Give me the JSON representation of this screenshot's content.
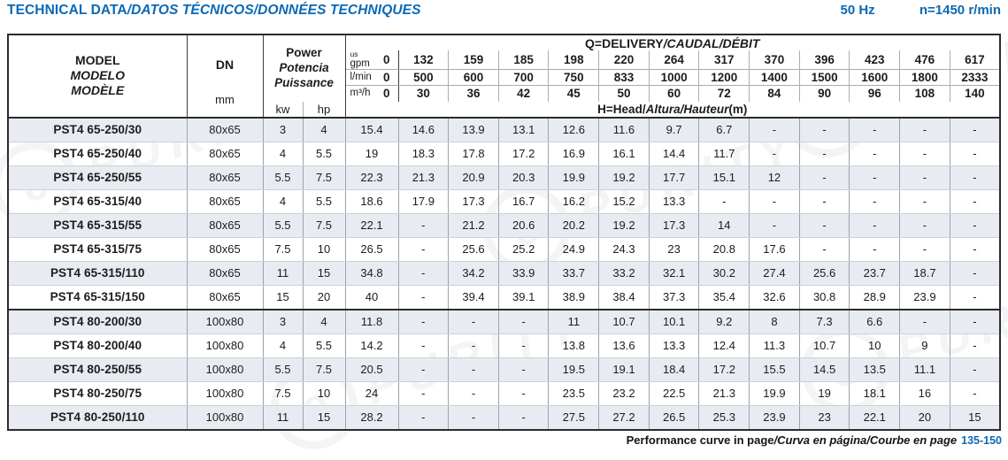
{
  "page": {
    "title": {
      "main": "TECHNICAL DATA",
      "italic": "/DATOS TÉCNICOS/DONNÉES TECHNIQUES"
    },
    "frequency": "50 Hz",
    "speed": "n=1450 r/min",
    "footer": {
      "main": "Performance curve in page",
      "italic": "/Curva en página/Courbe en page",
      "pages": "135-150"
    },
    "watermark_text": "PURITY",
    "colors": {
      "accent": "#0a69b5",
      "row_shade": "#e8ecf2",
      "border_dark": "#2d2a2b",
      "border_light": "#a6adb5"
    }
  },
  "table": {
    "header": {
      "model_lines": [
        "MODEL",
        "MODELO",
        "MODÈLE"
      ],
      "dn_label": "DN",
      "dn_unit": "mm",
      "power_lines": [
        "Power",
        "Potencia",
        "Puissance"
      ],
      "kw_label": "kw",
      "hp_label": "hp",
      "delivery_title": {
        "main": "Q=DELIVERY",
        "italic": "/CAUDAL/DÉBIT"
      },
      "head_title": {
        "main": "H=Head/",
        "italic": "Altura/Hauteur",
        "unit": "(m)"
      },
      "units": {
        "gpm_sup": "us",
        "gpm": "gpm",
        "lmin": "l/min",
        "m3h": "m³/h"
      },
      "gpm_values": [
        "0",
        "132",
        "159",
        "185",
        "198",
        "220",
        "264",
        "317",
        "370",
        "396",
        "423",
        "476",
        "617"
      ],
      "lmin_values": [
        "0",
        "500",
        "600",
        "700",
        "750",
        "833",
        "1000",
        "1200",
        "1400",
        "1500",
        "1600",
        "1800",
        "2333"
      ],
      "m3h_values": [
        "0",
        "30",
        "36",
        "42",
        "45",
        "50",
        "60",
        "72",
        "84",
        "90",
        "96",
        "108",
        "140"
      ]
    },
    "rows": [
      {
        "model": "PST4 65-250/30",
        "dn": "80x65",
        "kw": "3",
        "hp": "4",
        "shaded": true,
        "group_start": false,
        "head": [
          "15.4",
          "14.6",
          "13.9",
          "13.1",
          "12.6",
          "11.6",
          "9.7",
          "6.7",
          "-",
          "-",
          "-",
          "-",
          "-"
        ]
      },
      {
        "model": "PST4 65-250/40",
        "dn": "80x65",
        "kw": "4",
        "hp": "5.5",
        "shaded": false,
        "group_start": false,
        "head": [
          "19",
          "18.3",
          "17.8",
          "17.2",
          "16.9",
          "16.1",
          "14.4",
          "11.7",
          "-",
          "-",
          "-",
          "-",
          "-"
        ]
      },
      {
        "model": "PST4 65-250/55",
        "dn": "80x65",
        "kw": "5.5",
        "hp": "7.5",
        "shaded": true,
        "group_start": false,
        "head": [
          "22.3",
          "21.3",
          "20.9",
          "20.3",
          "19.9",
          "19.2",
          "17.7",
          "15.1",
          "12",
          "-",
          "-",
          "-",
          "-"
        ]
      },
      {
        "model": "PST4 65-315/40",
        "dn": "80x65",
        "kw": "4",
        "hp": "5.5",
        "shaded": false,
        "group_start": false,
        "head": [
          "18.6",
          "17.9",
          "17.3",
          "16.7",
          "16.2",
          "15.2",
          "13.3",
          "-",
          "-",
          "-",
          "-",
          "-",
          "-"
        ]
      },
      {
        "model": "PST4 65-315/55",
        "dn": "80x65",
        "kw": "5.5",
        "hp": "7.5",
        "shaded": true,
        "group_start": false,
        "head": [
          "22.1",
          "-",
          "21.2",
          "20.6",
          "20.2",
          "19.2",
          "17.3",
          "14",
          "-",
          "-",
          "-",
          "-",
          "-"
        ]
      },
      {
        "model": "PST4 65-315/75",
        "dn": "80x65",
        "kw": "7.5",
        "hp": "10",
        "shaded": false,
        "group_start": false,
        "head": [
          "26.5",
          "-",
          "25.6",
          "25.2",
          "24.9",
          "24.3",
          "23",
          "20.8",
          "17.6",
          "-",
          "-",
          "-",
          "-"
        ]
      },
      {
        "model": "PST4 65-315/110",
        "dn": "80x65",
        "kw": "11",
        "hp": "15",
        "shaded": true,
        "group_start": false,
        "head": [
          "34.8",
          "-",
          "34.2",
          "33.9",
          "33.7",
          "33.2",
          "32.1",
          "30.2",
          "27.4",
          "25.6",
          "23.7",
          "18.7",
          "-"
        ]
      },
      {
        "model": "PST4 65-315/150",
        "dn": "80x65",
        "kw": "15",
        "hp": "20",
        "shaded": false,
        "group_start": false,
        "head": [
          "40",
          "-",
          "39.4",
          "39.1",
          "38.9",
          "38.4",
          "37.3",
          "35.4",
          "32.6",
          "30.8",
          "28.9",
          "23.9",
          "-"
        ]
      },
      {
        "model": "PST4 80-200/30",
        "dn": "100x80",
        "kw": "3",
        "hp": "4",
        "shaded": true,
        "group_start": true,
        "head": [
          "11.8",
          "-",
          "-",
          "-",
          "11",
          "10.7",
          "10.1",
          "9.2",
          "8",
          "7.3",
          "6.6",
          "-",
          "-"
        ]
      },
      {
        "model": "PST4 80-200/40",
        "dn": "100x80",
        "kw": "4",
        "hp": "5.5",
        "shaded": false,
        "group_start": false,
        "head": [
          "14.2",
          "-",
          "-",
          "-",
          "13.8",
          "13.6",
          "13.3",
          "12.4",
          "11.3",
          "10.7",
          "10",
          "9",
          "-"
        ]
      },
      {
        "model": "PST4 80-250/55",
        "dn": "100x80",
        "kw": "5.5",
        "hp": "7.5",
        "shaded": true,
        "group_start": false,
        "head": [
          "20.5",
          "-",
          "-",
          "-",
          "19.5",
          "19.1",
          "18.4",
          "17.2",
          "15.5",
          "14.5",
          "13.5",
          "11.1",
          "-"
        ]
      },
      {
        "model": "PST4 80-250/75",
        "dn": "100x80",
        "kw": "7.5",
        "hp": "10",
        "shaded": false,
        "group_start": false,
        "head": [
          "24",
          "-",
          "-",
          "-",
          "23.5",
          "23.2",
          "22.5",
          "21.3",
          "19.9",
          "19",
          "18.1",
          "16",
          "-"
        ]
      },
      {
        "model": "PST4 80-250/110",
        "dn": "100x80",
        "kw": "11",
        "hp": "15",
        "shaded": true,
        "group_start": false,
        "head": [
          "28.2",
          "-",
          "-",
          "-",
          "27.5",
          "27.2",
          "26.5",
          "25.3",
          "23.9",
          "23",
          "22.1",
          "20",
          "15"
        ]
      }
    ]
  }
}
